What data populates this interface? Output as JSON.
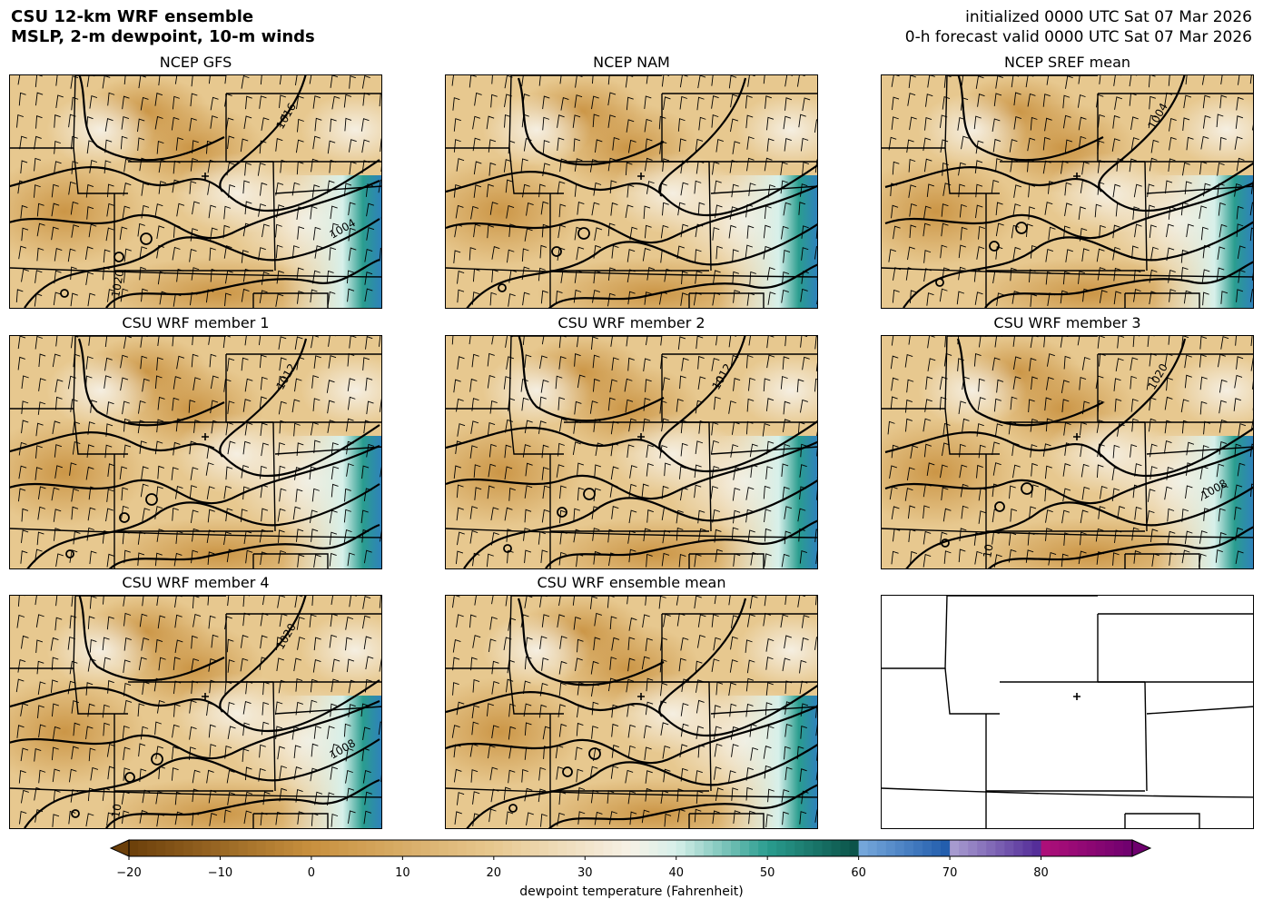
{
  "header": {
    "title_line1": "CSU 12-km WRF ensemble",
    "title_line2": "MSLP, 2-m dewpoint, 10-m winds",
    "init_line": "initialized 0000 UTC Sat 07 Mar 2026",
    "valid_line": "0-h forecast valid 0000 UTC Sat 07 Mar 2026"
  },
  "panels": [
    {
      "title": "NCEP GFS",
      "contour_labels": [
        "1016",
        "1004",
        "1020"
      ]
    },
    {
      "title": "NCEP NAM",
      "contour_labels": []
    },
    {
      "title": "NCEP SREF mean",
      "contour_labels": [
        "1004"
      ]
    },
    {
      "title": "CSU WRF member 1",
      "contour_labels": [
        "1012"
      ]
    },
    {
      "title": "CSU WRF member 2",
      "contour_labels": [
        "1012"
      ]
    },
    {
      "title": "CSU WRF member 3",
      "contour_labels": [
        "1020",
        "1008",
        "10"
      ]
    },
    {
      "title": "CSU WRF member 4",
      "contour_labels": [
        "1020",
        "1008",
        "10"
      ]
    },
    {
      "title": "CSU WRF ensemble mean",
      "contour_labels": []
    },
    {
      "title": "",
      "contour_labels": []
    }
  ],
  "colorbar": {
    "label": "dewpoint temperature (Fahrenheit)",
    "ticks": [
      "−20",
      "−10",
      "0",
      "10",
      "20",
      "30",
      "40",
      "50",
      "60",
      "70",
      "80"
    ],
    "range": [
      -20,
      90
    ],
    "extend": "both"
  },
  "colors": {
    "dry_dark": "#6b3f0a",
    "dry_mid": "#c8903e",
    "tan": "#e7c88f",
    "light": "#f6f1e6",
    "teal": "#2a9d8f",
    "blue": "#2f7fbf",
    "purple": "#6a3d9a",
    "magenta": "#b0107a"
  }
}
